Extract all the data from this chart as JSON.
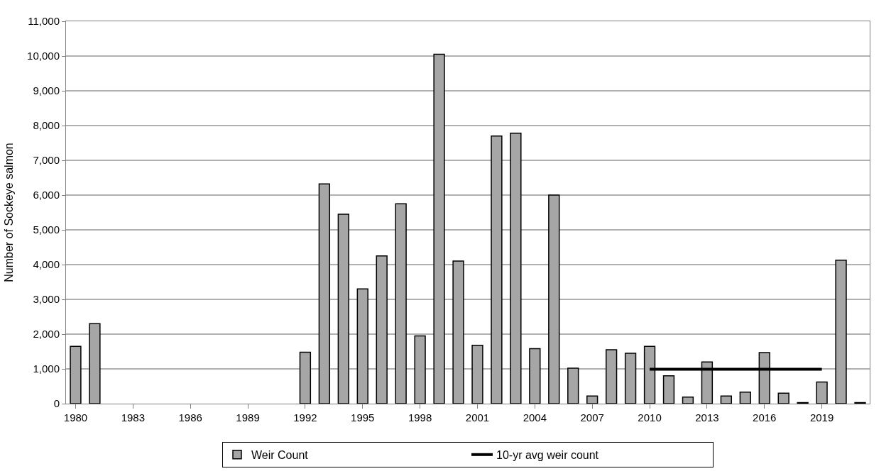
{
  "chart_data": {
    "type": "bar",
    "ylabel": "Number of Sockeye salmon",
    "categories": [
      "1980",
      null,
      null,
      "1983",
      null,
      null,
      "1986",
      null,
      null,
      "1989",
      null,
      null,
      "1992",
      null,
      null,
      "1995",
      null,
      null,
      "1998",
      null,
      null,
      "2001",
      null,
      null,
      "2004",
      null,
      null,
      "2007",
      null,
      null,
      "2010",
      null,
      null,
      "2013",
      null,
      null,
      "2016",
      null,
      null,
      "2019",
      null,
      null
    ],
    "series": [
      {
        "name": "Weir Count",
        "color": "#a6a6a6",
        "values": [
          1650,
          2300,
          null,
          null,
          null,
          null,
          null,
          null,
          null,
          null,
          null,
          null,
          1480,
          6320,
          5450,
          3300,
          4250,
          5750,
          1950,
          10050,
          4100,
          1680,
          7700,
          7780,
          1580,
          6000,
          1020,
          220,
          1550,
          1450,
          1650,
          800,
          190,
          1200,
          220,
          330,
          1470,
          300,
          30,
          620,
          4130,
          30
        ]
      },
      {
        "name": "10-yr avg weir count",
        "type": "line",
        "color": "#000000",
        "values": [
          null,
          null,
          null,
          null,
          null,
          null,
          null,
          null,
          null,
          null,
          null,
          null,
          null,
          null,
          null,
          null,
          null,
          null,
          null,
          null,
          null,
          null,
          null,
          null,
          null,
          null,
          null,
          null,
          null,
          null,
          990,
          990,
          990,
          990,
          990,
          990,
          990,
          990,
          990,
          990,
          null,
          null
        ]
      }
    ],
    "ylim": [
      0,
      11000
    ],
    "yticks": [
      {
        "value": 0,
        "label": "0"
      },
      {
        "value": 1000,
        "label": "1,000"
      },
      {
        "value": 2000,
        "label": "2,000"
      },
      {
        "value": 3000,
        "label": "3,000"
      },
      {
        "value": 4000,
        "label": "4,000"
      },
      {
        "value": 5000,
        "label": "5,000"
      },
      {
        "value": 6000,
        "label": "6,000"
      },
      {
        "value": 7000,
        "label": "7,000"
      },
      {
        "value": 8000,
        "label": "8,000"
      },
      {
        "value": 9000,
        "label": "9,000"
      },
      {
        "value": 10000,
        "label": "10,000"
      },
      {
        "value": 11000,
        "label": "11,000"
      }
    ],
    "grid": "y",
    "legend": "bottom",
    "marker": "none",
    "line_style": "solid"
  }
}
